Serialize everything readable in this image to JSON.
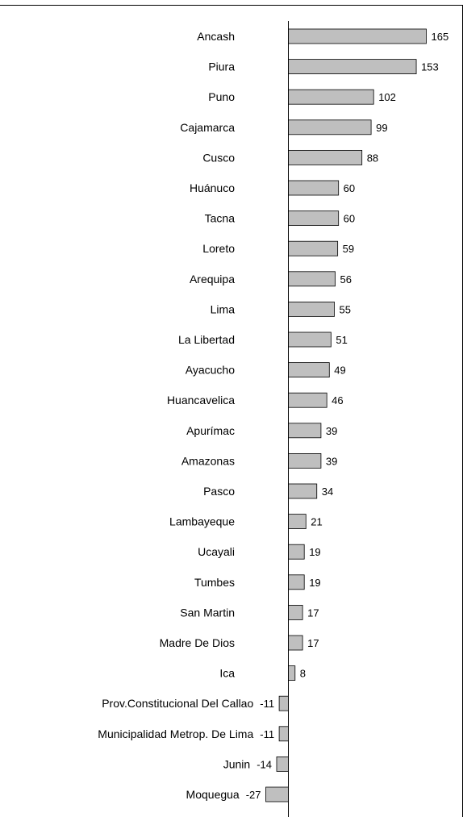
{
  "chart_data": {
    "type": "bar",
    "orientation": "horizontal",
    "title": "",
    "xlabel": "",
    "ylabel": "",
    "grid": false,
    "legend": "none",
    "categories": [
      "Ancash",
      "Piura",
      "Puno",
      "Cajamarca",
      "Cusco",
      "Huánuco",
      "Tacna",
      "Loreto",
      "Arequipa",
      "Lima",
      "La Libertad",
      "Ayacucho",
      "Huancavelica",
      "Apurímac",
      "Amazonas",
      "Pasco",
      "Lambayeque",
      "Ucayali",
      "Tumbes",
      "San Martin",
      "Madre De Dios",
      "Ica",
      "Prov.Constitucional Del Callao",
      "Municipalidad Metrop. De Lima",
      "Junin",
      "Moquegua"
    ],
    "values": [
      165,
      153,
      102,
      99,
      88,
      60,
      60,
      59,
      56,
      55,
      51,
      49,
      46,
      39,
      39,
      34,
      21,
      19,
      19,
      17,
      17,
      8,
      -11,
      -11,
      -14,
      -27
    ],
    "colors": {
      "bar_fill": "#bfbfbf",
      "bar_stroke": "#000000",
      "axis": "#000000",
      "border": "#000000"
    }
  }
}
